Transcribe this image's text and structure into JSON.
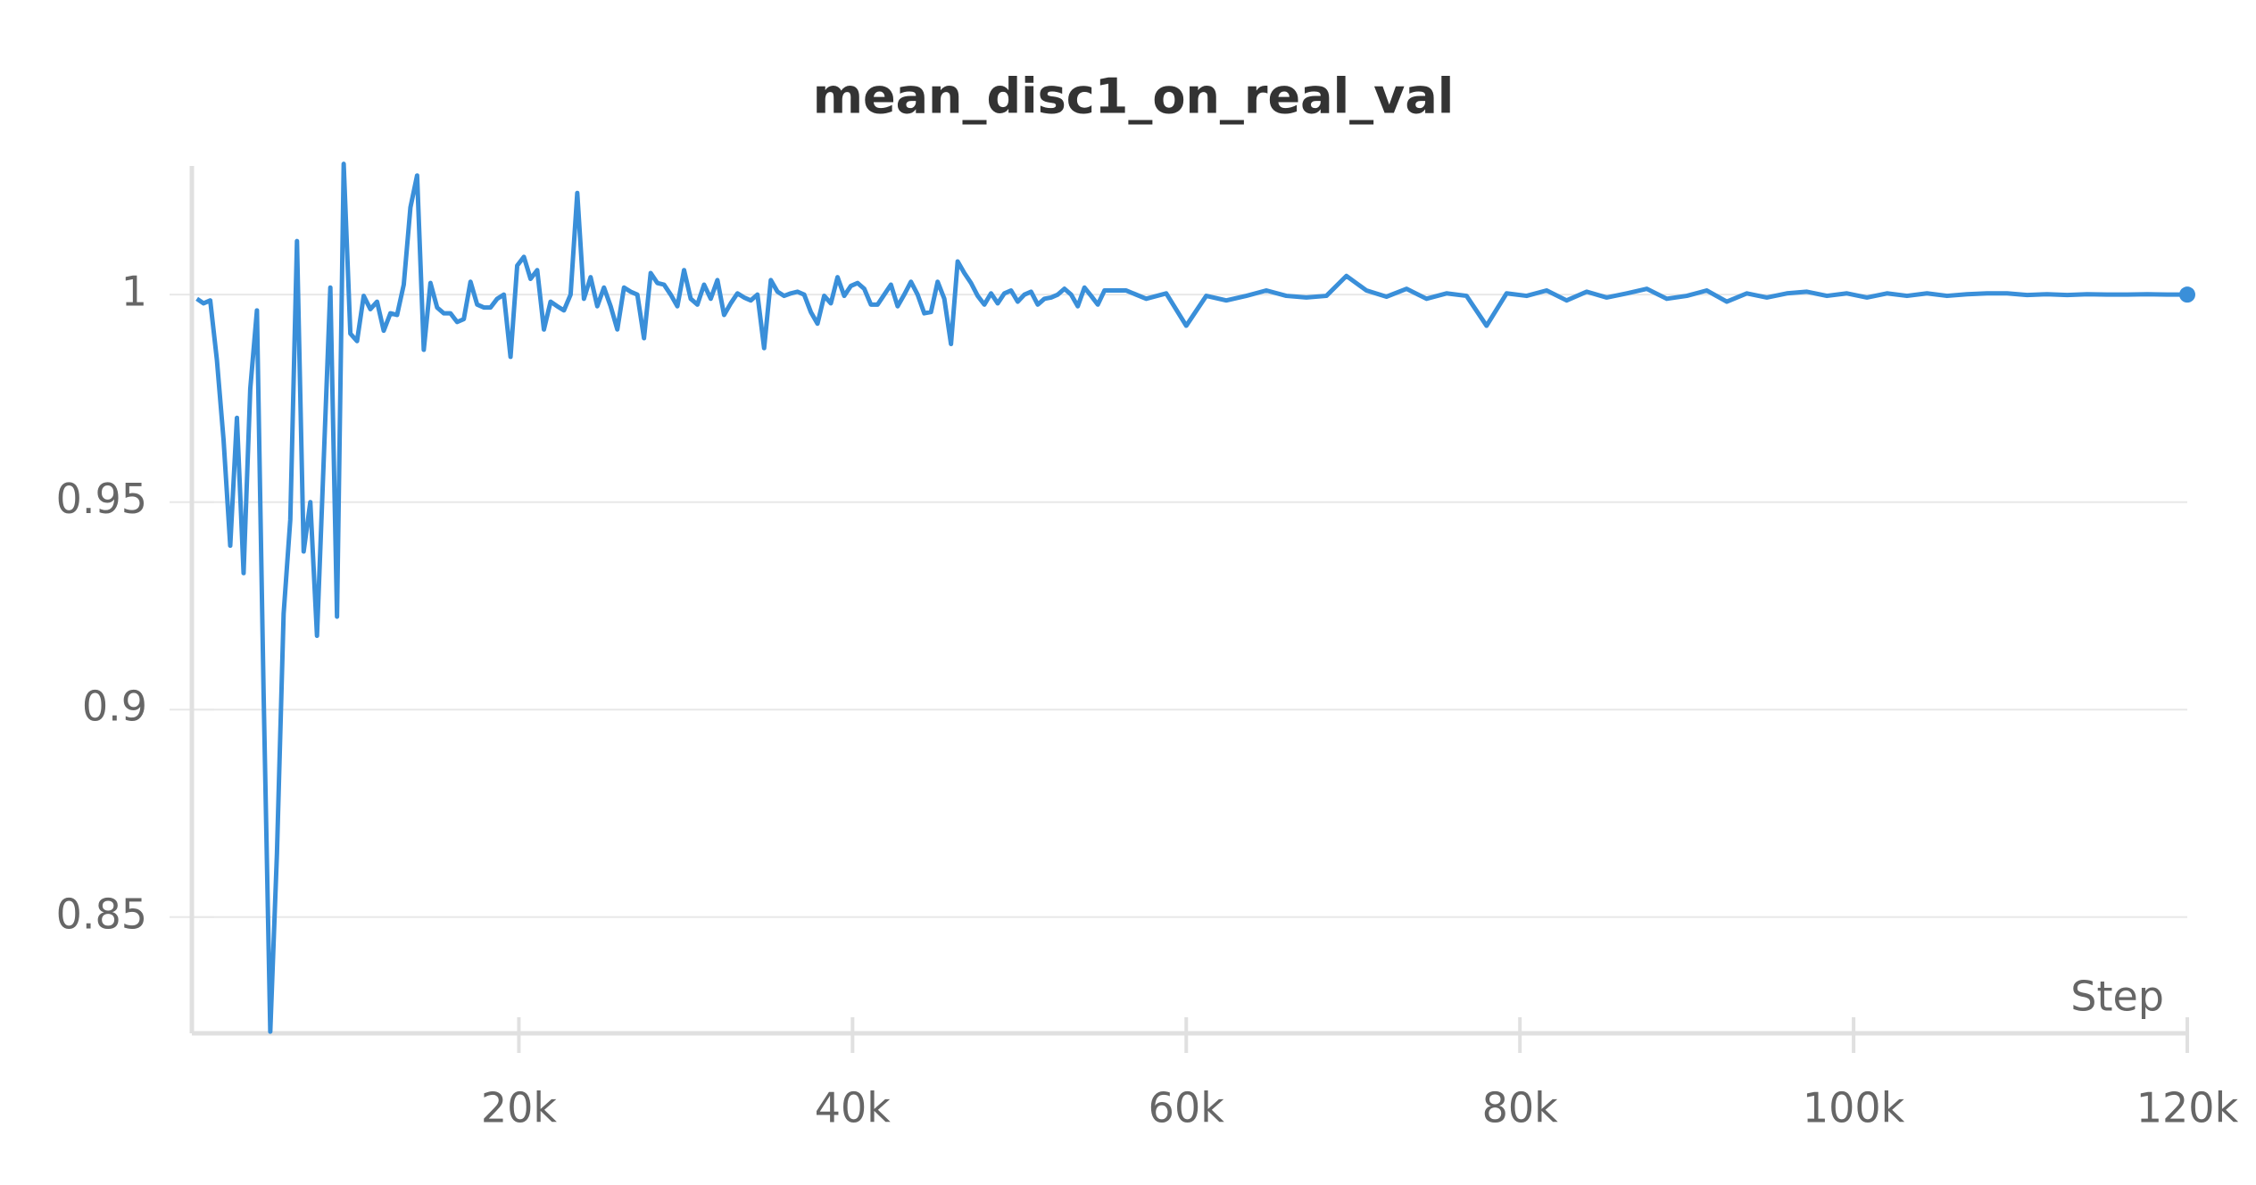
{
  "chart_data": {
    "type": "line",
    "title": "mean_disc1_on_real_val",
    "x_label": "Step",
    "xlim": [
      400,
      120000
    ],
    "ylim": [
      0.822,
      1.031
    ],
    "xticks": [
      {
        "value": 20000,
        "label": "20k"
      },
      {
        "value": 40000,
        "label": "40k"
      },
      {
        "value": 60000,
        "label": "60k"
      },
      {
        "value": 80000,
        "label": "80k"
      },
      {
        "value": 100000,
        "label": "100k"
      },
      {
        "value": 120000,
        "label": "120k"
      }
    ],
    "yticks": [
      0.85,
      0.9,
      0.95,
      1
    ],
    "grid": true,
    "x": [
      700,
      1100,
      1500,
      1900,
      2300,
      2700,
      3100,
      3500,
      3900,
      4300,
      4700,
      5100,
      5500,
      5900,
      6300,
      6700,
      7100,
      7500,
      7900,
      8300,
      8700,
      9100,
      9500,
      9900,
      10300,
      10700,
      11100,
      11500,
      11900,
      12300,
      12700,
      13100,
      13500,
      13900,
      14300,
      14700,
      15100,
      15500,
      15900,
      16300,
      16700,
      17100,
      17500,
      17900,
      18300,
      18700,
      19100,
      19500,
      19900,
      20300,
      20700,
      21100,
      21500,
      21900,
      22300,
      22700,
      23100,
      23500,
      23900,
      24300,
      24700,
      25100,
      25500,
      25900,
      26300,
      26700,
      27100,
      27500,
      27900,
      28300,
      28700,
      29100,
      29500,
      29900,
      30300,
      30700,
      31100,
      31500,
      31900,
      32300,
      32700,
      33100,
      33500,
      33900,
      34300,
      34700,
      35100,
      35500,
      35900,
      36300,
      36700,
      37100,
      37500,
      37900,
      38300,
      38700,
      39100,
      39500,
      39900,
      40300,
      40700,
      41100,
      41500,
      41900,
      42300,
      42700,
      43100,
      43500,
      43900,
      44300,
      44700,
      45100,
      45500,
      45900,
      46300,
      46700,
      47100,
      47500,
      47900,
      48300,
      48700,
      49100,
      49500,
      49900,
      50300,
      50700,
      51100,
      51500,
      51900,
      52300,
      52700,
      53100,
      53500,
      53900,
      54300,
      54700,
      55100,
      56400,
      57600,
      58800,
      60000,
      61200,
      62400,
      63600,
      64800,
      66000,
      67200,
      68400,
      69600,
      70800,
      72000,
      73200,
      74400,
      75600,
      76800,
      78000,
      79200,
      80400,
      81600,
      82800,
      84000,
      85200,
      86400,
      87600,
      88800,
      90000,
      91200,
      92400,
      93600,
      94800,
      96000,
      97200,
      98400,
      99600,
      100800,
      102000,
      103200,
      104400,
      105600,
      106800,
      108000,
      109200,
      110400,
      111600,
      112800,
      114000,
      115200,
      116400,
      117600,
      118800,
      120000
    ],
    "series": [
      {
        "name": "mean_disc1_on_real_val",
        "color": "#3a8fd9",
        "values": [
          0.999,
          0.9979,
          0.9986,
          0.9843,
          0.965,
          0.9395,
          0.9703,
          0.9329,
          0.9773,
          0.9962,
          0.9038,
          0.8224,
          0.8654,
          0.9231,
          0.9458,
          1.0129,
          0.9381,
          0.95,
          0.9178,
          0.9598,
          1.0017,
          0.9224,
          1.0315,
          0.9906,
          0.9888,
          0.9997,
          0.9965,
          0.9983,
          0.9913,
          0.9955,
          0.9951,
          1.0024,
          1.021,
          1.0287,
          0.9867,
          1.0028,
          0.9969,
          0.9955,
          0.9955,
          0.9934,
          0.9941,
          1.0031,
          0.9976,
          0.9969,
          0.9969,
          0.999,
          1.0,
          0.985,
          1.007,
          1.0091,
          1.0038,
          1.0059,
          0.9916,
          0.9983,
          0.9972,
          0.9962,
          1.0,
          1.0245,
          0.999,
          1.0042,
          0.9972,
          1.0017,
          0.9972,
          0.9916,
          1.0017,
          1.0007,
          1.0,
          0.9895,
          1.0052,
          1.0028,
          1.0024,
          1.0,
          0.9972,
          1.0059,
          0.999,
          0.9976,
          1.0024,
          0.999,
          1.0035,
          0.9951,
          0.9979,
          1.0003,
          0.9993,
          0.9986,
          1.0,
          0.9871,
          1.0035,
          1.0007,
          0.9997,
          1.0003,
          1.0007,
          1.0,
          0.9958,
          0.993,
          0.9997,
          0.9979,
          1.0042,
          0.9997,
          1.0021,
          1.0028,
          1.0014,
          0.9976,
          0.9976,
          1.0,
          1.0024,
          0.9972,
          1.0,
          1.0031,
          1.0,
          0.9955,
          0.9958,
          1.0031,
          0.999,
          0.9881,
          1.008,
          1.0052,
          1.0028,
          0.9997,
          0.9976,
          1.0003,
          0.9979,
          1.0003,
          1.001,
          0.9983,
          1.0,
          1.0007,
          0.9976,
          0.999,
          0.9993,
          1.0,
          1.0014,
          1.0,
          0.9972,
          1.0017,
          0.9997,
          0.9976,
          1.001,
          1.001,
          0.999,
          1.0003,
          0.9925,
          0.9997,
          0.9986,
          0.9997,
          1.001,
          0.9997,
          0.9993,
          0.9997,
          1.0045,
          1.001,
          0.9995,
          1.0014,
          0.999,
          1.0003,
          0.9997,
          0.9925,
          1.0003,
          0.9997,
          1.001,
          0.9986,
          1.0007,
          0.9993,
          1.0003,
          1.0014,
          0.999,
          0.9997,
          1.001,
          0.9983,
          1.0003,
          0.9993,
          1.0003,
          1.0007,
          0.9997,
          1.0003,
          0.9993,
          1.0003,
          0.9997,
          1.0003,
          0.9997,
          1.0001,
          1.0003,
          1.0003,
          0.9999,
          1.0001,
          0.9999,
          1.0001,
          1.0,
          1.0,
          1.0001,
          1.0,
          1.0
        ]
      }
    ]
  }
}
